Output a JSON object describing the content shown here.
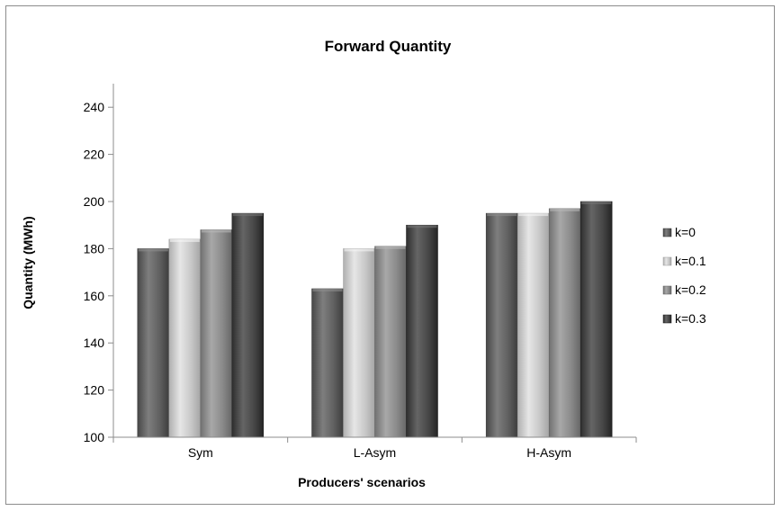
{
  "chart_data": {
    "type": "bar",
    "title": "Forward Quantity",
    "xlabel": "Producers' scenarios",
    "ylabel": "Quantity (MWh)",
    "ylim": [
      100,
      250
    ],
    "yticks": [
      100,
      120,
      140,
      160,
      180,
      200,
      220,
      240
    ],
    "grid": false,
    "legend_position": "right",
    "categories": [
      "Sym",
      "L-Asym",
      "H-Asym"
    ],
    "series": [
      {
        "name": "k=0",
        "color": "#606060",
        "values": [
          180,
          163,
          195
        ]
      },
      {
        "name": "k=0.1",
        "color": "#c8c8c8",
        "values": [
          184,
          180,
          195
        ]
      },
      {
        "name": "k=0.2",
        "color": "#8a8a8a",
        "values": [
          188,
          181,
          197
        ]
      },
      {
        "name": "k=0.3",
        "color": "#474747",
        "values": [
          195,
          190,
          200
        ]
      }
    ]
  }
}
